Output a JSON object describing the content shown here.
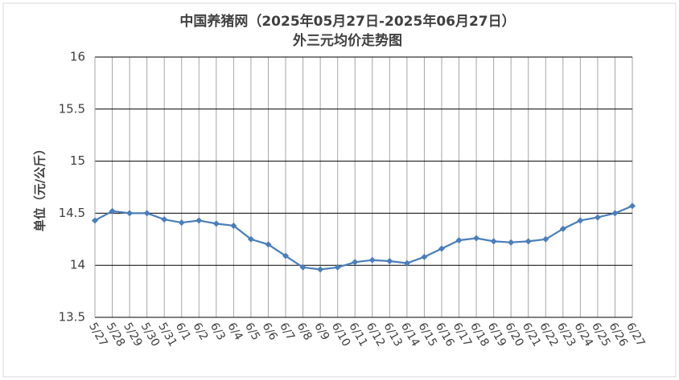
{
  "chart_data": {
    "type": "line",
    "title": "中国养猪网（2025年05月27日-2025年06月27日）",
    "subtitle": "外三元均价走势图",
    "y_label": "单位（元/公斤）",
    "categories": [
      "5/27",
      "5/28",
      "5/29",
      "5/30",
      "5/31",
      "6/1",
      "6/2",
      "6/3",
      "6/4",
      "6/5",
      "6/6",
      "6/7",
      "6/8",
      "6/9",
      "6/10",
      "6/11",
      "6/12",
      "6/13",
      "6/14",
      "6/15",
      "6/16",
      "6/17",
      "6/18",
      "6/19",
      "6/20",
      "6/21",
      "6/22",
      "6/23",
      "6/24",
      "6/25",
      "6/26",
      "6/27"
    ],
    "values": [
      14.43,
      14.52,
      14.5,
      14.5,
      14.44,
      14.41,
      14.43,
      14.4,
      14.38,
      14.25,
      14.2,
      14.09,
      13.98,
      13.96,
      13.98,
      14.03,
      14.05,
      14.04,
      14.02,
      14.08,
      14.16,
      14.24,
      14.26,
      14.23,
      14.22,
      14.23,
      14.25,
      14.35,
      14.43,
      14.46,
      14.5,
      14.57
    ],
    "color": "#4a7ebb",
    "ylim": [
      13.5,
      16
    ],
    "yticks": [
      13.5,
      14,
      14.5,
      15,
      15.5,
      16
    ],
    "grid": true
  }
}
